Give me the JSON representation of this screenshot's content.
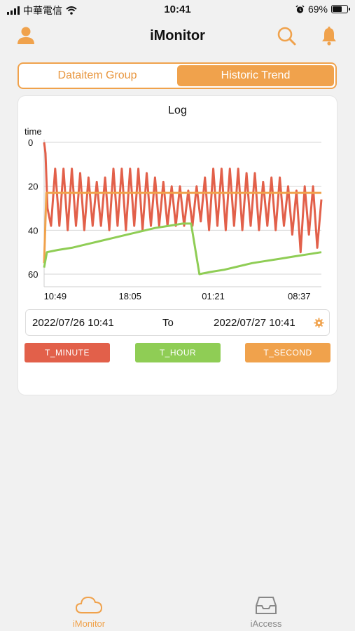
{
  "status_bar": {
    "carrier": "中華電信",
    "time": "10:41",
    "battery": "69%",
    "battery_level": 0.69
  },
  "header": {
    "title": "iMonitor",
    "left_icon": "user-icon",
    "right_icons": [
      "search-icon",
      "bell-icon"
    ]
  },
  "tabs": {
    "items": [
      {
        "label": "Dataitem Group",
        "active": false
      },
      {
        "label": "Historic Trend",
        "active": true
      }
    ]
  },
  "chart": {
    "title": "Log",
    "ylabel": "time",
    "ytick_labels": [
      "60",
      "40",
      "20",
      "0"
    ],
    "xtick_labels": [
      "10:49",
      "18:05",
      "01:21",
      "08:37"
    ]
  },
  "range": {
    "from": "2022/07/26 10:41",
    "to_label": "To",
    "to": "2022/07/27 10:41"
  },
  "legend": [
    {
      "label": "T_MINUTE",
      "color": "#e2604a"
    },
    {
      "label": "T_HOUR",
      "color": "#8fcd55"
    },
    {
      "label": "T_SECOND",
      "color": "#f0a24c"
    }
  ],
  "bottom_tabs": [
    {
      "label": "iMonitor",
      "icon": "cloud-icon",
      "active": true
    },
    {
      "label": "iAccess",
      "icon": "inbox-icon",
      "active": false
    }
  ],
  "colors": {
    "accent": "#f0a24c",
    "minute": "#e2604a",
    "hour": "#8fcd55",
    "second": "#f0a24c"
  },
  "chart_data": {
    "type": "line",
    "title": "Log",
    "xlabel": "",
    "ylabel": "time",
    "ylim": [
      0,
      60
    ],
    "xlim": [
      "10:41",
      "10:41 (+1d)"
    ],
    "x_ticks": [
      "10:49",
      "18:05",
      "01:21",
      "08:37"
    ],
    "y_ticks": [
      0,
      20,
      40,
      60
    ],
    "grid": true,
    "series": [
      {
        "name": "T_MINUTE",
        "x_fraction": [
          0.0,
          0.005,
          0.012,
          0.025,
          0.04,
          0.055,
          0.07,
          0.085,
          0.1,
          0.115,
          0.13,
          0.145,
          0.16,
          0.175,
          0.19,
          0.205,
          0.22,
          0.235,
          0.25,
          0.265,
          0.28,
          0.295,
          0.31,
          0.325,
          0.34,
          0.355,
          0.37,
          0.385,
          0.4,
          0.415,
          0.43,
          0.445,
          0.46,
          0.475,
          0.49,
          0.505,
          0.52,
          0.535,
          0.55,
          0.565,
          0.58,
          0.595,
          0.61,
          0.625,
          0.64,
          0.655,
          0.67,
          0.685,
          0.7,
          0.715,
          0.73,
          0.745,
          0.76,
          0.775,
          0.79,
          0.805,
          0.82,
          0.835,
          0.85,
          0.865,
          0.88,
          0.895,
          0.91,
          0.925,
          0.94,
          0.955,
          0.97,
          0.985,
          1.0
        ],
        "values": [
          60,
          55,
          30,
          22,
          48,
          22,
          48,
          20,
          48,
          22,
          46,
          20,
          44,
          22,
          42,
          22,
          44,
          20,
          48,
          22,
          48,
          20,
          48,
          22,
          48,
          20,
          46,
          22,
          44,
          22,
          42,
          22,
          40,
          22,
          40,
          22,
          38,
          22,
          40,
          24,
          44,
          20,
          48,
          22,
          48,
          20,
          48,
          22,
          48,
          20,
          46,
          22,
          46,
          20,
          42,
          22,
          44,
          20,
          44,
          22,
          40,
          18,
          38,
          10,
          40,
          18,
          40,
          12,
          34
        ]
      },
      {
        "name": "T_HOUR",
        "x_fraction": [
          0.0,
          0.01,
          0.05,
          0.1,
          0.15,
          0.2,
          0.25,
          0.3,
          0.35,
          0.4,
          0.45,
          0.5,
          0.53,
          0.56,
          0.6,
          0.65,
          0.7,
          0.75,
          0.8,
          0.85,
          0.9,
          0.95,
          1.0
        ],
        "values": [
          3,
          10,
          11,
          12,
          13.5,
          15,
          16.5,
          18,
          19.5,
          21,
          22,
          23,
          23,
          0,
          1,
          2,
          3.5,
          5,
          6,
          7,
          8,
          9,
          10
        ]
      },
      {
        "name": "T_SECOND",
        "x_fraction": [
          0.0,
          0.008,
          0.02,
          0.1,
          0.2,
          0.3,
          0.4,
          0.5,
          0.6,
          0.7,
          0.8,
          0.9,
          1.0
        ],
        "values": [
          5,
          37,
          37,
          37,
          37,
          37,
          37,
          37,
          37,
          37,
          37,
          37,
          37
        ]
      }
    ]
  }
}
